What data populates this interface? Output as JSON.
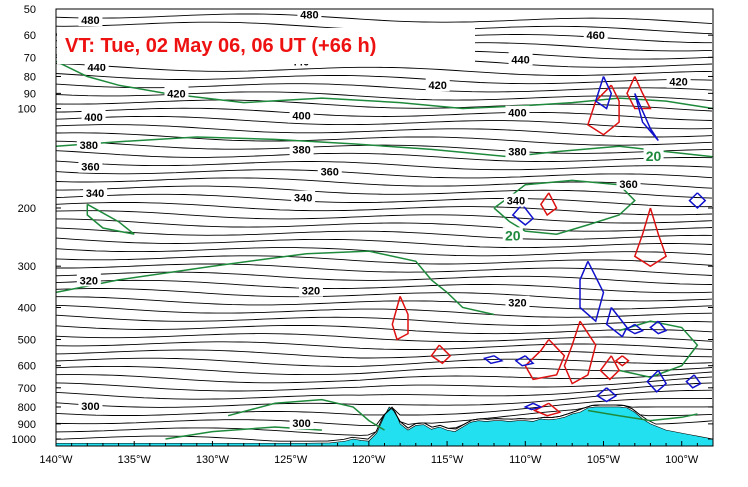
{
  "title": "VT:  Tue, 02 May 06, 06 UT (+66 h)",
  "colors": {
    "theta": "#000000",
    "wind": "#1e8a3c",
    "positive_pv_or_omega": "#dd1111",
    "negative": "#1111cc",
    "terrain": "#22e0ef",
    "title": "#ee1111"
  },
  "chart_data": {
    "type": "line",
    "title": "VT:  Tue, 02 May 06, 06 UT (+66 h)",
    "xlabel": "",
    "ylabel": "",
    "x_axis": {
      "range": [
        -140,
        -98
      ],
      "ticks": [
        -140,
        -135,
        -130,
        -125,
        -120,
        -115,
        -110,
        -105,
        -100
      ],
      "tick_labels": [
        "140°W",
        "135°W",
        "130°W",
        "125°W",
        "120°W",
        "115°W",
        "110°W",
        "105°W",
        "100°W"
      ]
    },
    "y_axis": {
      "scale": "log",
      "inverted": true,
      "range": [
        50,
        1050
      ],
      "ticks": [
        50,
        60,
        70,
        80,
        90,
        100,
        200,
        300,
        400,
        500,
        600,
        700,
        800,
        900,
        1000
      ],
      "tick_labels": [
        "50",
        "60",
        "70",
        "80",
        "90",
        "100",
        "200",
        "300",
        "400",
        "500",
        "600",
        "700",
        "800",
        "900",
        "1000"
      ]
    },
    "series": [
      {
        "name": "potential temperature",
        "color": "#000000",
        "style": "contour"
      },
      {
        "name": "wind speed",
        "color": "#1e8a3c",
        "style": "contour"
      },
      {
        "color": "#dd1111",
        "style": "contour"
      },
      {
        "color": "#1111cc",
        "style": "contour"
      },
      {
        "name": "terrain",
        "color": "#22e0ef",
        "style": "filled"
      }
    ],
    "theta_labels": [
      {
        "value": "480",
        "x": -123.8,
        "p": 52
      },
      {
        "value": "480",
        "x": -137.8,
        "p": 54
      },
      {
        "value": "460",
        "x": -105.5,
        "p": 60
      },
      {
        "value": "440",
        "x": -124.4,
        "p": 72
      },
      {
        "value": "440",
        "x": -137.4,
        "p": 75
      },
      {
        "value": "440",
        "x": -110.3,
        "p": 71
      },
      {
        "value": "420",
        "x": -132.3,
        "p": 90
      },
      {
        "value": "420",
        "x": -115.6,
        "p": 85
      },
      {
        "value": "420",
        "x": -100.2,
        "p": 83
      },
      {
        "value": "400",
        "x": -137.6,
        "p": 106
      },
      {
        "value": "400",
        "x": -124.3,
        "p": 105
      },
      {
        "value": "400",
        "x": -110.5,
        "p": 103
      },
      {
        "value": "380",
        "x": -137.9,
        "p": 129
      },
      {
        "value": "380",
        "x": -124.3,
        "p": 133
      },
      {
        "value": "380",
        "x": -110.5,
        "p": 135
      },
      {
        "value": "360",
        "x": -137.8,
        "p": 150
      },
      {
        "value": "360",
        "x": -122.5,
        "p": 155
      },
      {
        "value": "360",
        "x": -103.4,
        "p": 169
      },
      {
        "value": "340",
        "x": -137.5,
        "p": 180
      },
      {
        "value": "340",
        "x": -124.2,
        "p": 186
      },
      {
        "value": "340",
        "x": -110.6,
        "p": 190
      },
      {
        "value": "320",
        "x": -137.9,
        "p": 331
      },
      {
        "value": "320",
        "x": -123.7,
        "p": 356
      },
      {
        "value": "320",
        "x": -110.5,
        "p": 387
      },
      {
        "value": "300",
        "x": -137.8,
        "p": 795
      },
      {
        "value": "300",
        "x": -124.3,
        "p": 895
      }
    ],
    "wind_labels": [
      {
        "value": "20",
        "x": -101.8,
        "p": 139
      },
      {
        "value": "20",
        "x": -110.8,
        "p": 242
      }
    ],
    "terrain_profile": {
      "x": [
        -140,
        -124,
        -122.5,
        -121.5,
        -121,
        -120.5,
        -120,
        -119.5,
        -119,
        -118.7,
        -118.3,
        -118,
        -117.5,
        -117,
        -116.5,
        -116,
        -115.5,
        -115,
        -114.5,
        -114,
        -113.5,
        -113,
        -112.5,
        -112,
        -111.5,
        -111,
        -110.5,
        -110,
        -109.5,
        -109,
        -108.5,
        -108,
        -107.5,
        -107,
        -106.5,
        -106,
        -105.5,
        -105,
        -104.5,
        -104,
        -103.5,
        -103,
        -102.5,
        -102,
        -101.5,
        -101,
        -100.5,
        -100,
        -99.5,
        -99,
        -98.5,
        -98
      ],
      "p": [
        1030,
        1030,
        1028,
        1015,
        1000,
        1010,
        1015,
        960,
        850,
        800,
        830,
        900,
        940,
        910,
        905,
        935,
        920,
        940,
        950,
        920,
        890,
        880,
        885,
        880,
        880,
        885,
        880,
        880,
        885,
        870,
        875,
        870,
        860,
        840,
        830,
        805,
        800,
        800,
        800,
        800,
        805,
        830,
        870,
        900,
        920,
        940,
        950,
        960,
        970,
        980,
        990,
        1000
      ]
    }
  }
}
